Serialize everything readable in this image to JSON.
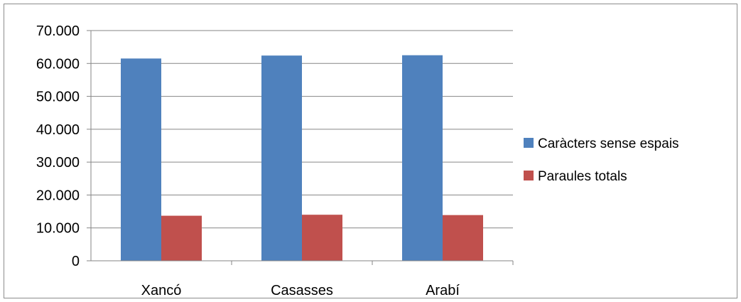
{
  "chart_data": {
    "type": "bar",
    "categories": [
      "Xancó",
      "Casasses",
      "Arabí"
    ],
    "series": [
      {
        "name": "Caràcters sense espais",
        "values": [
          61500,
          62400,
          62500
        ],
        "color": "#4f81bd"
      },
      {
        "name": "Paraules totals",
        "values": [
          13700,
          14000,
          13900
        ],
        "color": "#c0504d"
      }
    ],
    "y_ticks": [
      "0",
      "10.000",
      "20.000",
      "30.000",
      "40.000",
      "50.000",
      "60.000",
      "70.000"
    ],
    "ylim": [
      0,
      70000
    ],
    "grid": true,
    "legend_position": "right",
    "gridline_color": "#868686"
  }
}
